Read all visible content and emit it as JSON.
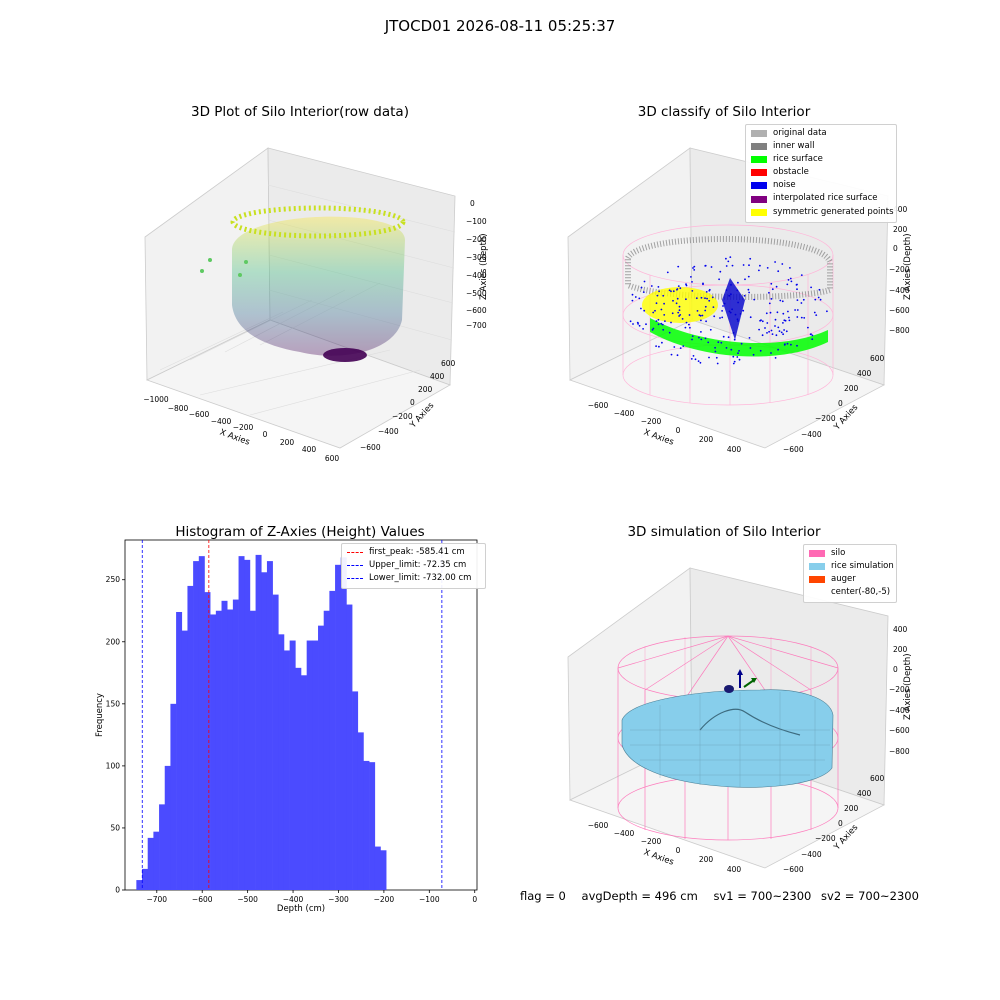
{
  "suptitle": "JTOCD01 2026-08-11 05:25:37",
  "panels": {
    "raw": {
      "title": "3D Plot of Silo Interior(row data)",
      "xlabel": "X Axies",
      "ylabel": "Y Axies",
      "zlabel": "Z Axies (Depth)",
      "xticks": [
        "−1000",
        "−800",
        "−600",
        "−400",
        "−200",
        "0",
        "200",
        "400",
        "600"
      ],
      "yticks": [
        "−600",
        "−400",
        "−200",
        "0",
        "200",
        "400",
        "600"
      ],
      "zticks": [
        "0",
        "−100",
        "−200",
        "−300",
        "−400",
        "−500",
        "−600",
        "−700"
      ],
      "colormap": "viridis"
    },
    "classify": {
      "title": "3D classify of Silo Interior",
      "xlabel": "X Axies",
      "ylabel": "Y Axies",
      "zlabel": "Z Axies (Depth)",
      "xticks": [
        "−600",
        "−400",
        "−200",
        "0",
        "200",
        "400"
      ],
      "yticks": [
        "−600",
        "−400",
        "−200",
        "0",
        "200",
        "400",
        "600"
      ],
      "zticks": [
        "400",
        "200",
        "0",
        "−200",
        "−400",
        "−600",
        "−800"
      ],
      "legend": [
        {
          "label": "original data",
          "color": "#b0b0b0"
        },
        {
          "label": "inner wall",
          "color": "#808080"
        },
        {
          "label": "rice surface",
          "color": "#00ff00"
        },
        {
          "label": "obstacle",
          "color": "#ff0000"
        },
        {
          "label": "noise",
          "color": "#0000ee"
        },
        {
          "label": "interpolated rice surface",
          "color": "#800080"
        },
        {
          "label": "symmetric generated points",
          "color": "#ffff00"
        }
      ]
    },
    "histogram": {
      "title": "Histogram of Z-Axies (Height) Values",
      "xlabel": "Depth (cm)",
      "ylabel": "Frequency",
      "legend": [
        {
          "label": "first_peak: -585.41 cm",
          "color": "#ff0000"
        },
        {
          "label": "Upper_limit: -72.35 cm",
          "color": "#0000ff"
        },
        {
          "label": "Lower_limit: -732.00 cm",
          "color": "#0000ff"
        }
      ]
    },
    "simulation": {
      "title": "3D simulation of Silo Interior",
      "xlabel": "X Axies",
      "ylabel": "Y Axies",
      "zlabel": "Z Axies (Depth)",
      "xticks": [
        "−600",
        "−400",
        "−200",
        "0",
        "200",
        "400"
      ],
      "yticks": [
        "−600",
        "−400",
        "−200",
        "0",
        "200",
        "400",
        "600"
      ],
      "zticks": [
        "400",
        "200",
        "0",
        "−200",
        "−400",
        "−600",
        "−800"
      ],
      "legend": [
        {
          "label": "silo",
          "color": "#ff69b4"
        },
        {
          "label": "rice simulation",
          "color": "#87ceeb"
        },
        {
          "label": "auger",
          "color": "#ff4500"
        },
        {
          "label": "center(-80,-5)",
          "color": ""
        }
      ]
    }
  },
  "chart_data": [
    {
      "type": "bar",
      "title": "Histogram of Z-Axies (Height) Values",
      "xlabel": "Depth (cm)",
      "ylabel": "Frequency",
      "bin_start": -745,
      "bin_width": 12.5,
      "values": [
        8,
        17,
        42,
        47,
        69,
        100,
        150,
        224,
        209,
        245,
        265,
        269,
        240,
        222,
        225,
        233,
        226,
        234,
        269,
        266,
        225,
        270,
        256,
        265,
        238,
        206,
        193,
        201,
        179,
        173,
        201,
        201,
        213,
        225,
        241,
        262,
        268,
        230,
        160,
        127,
        104,
        103,
        35,
        32
      ],
      "xlim": [
        -770,
        5
      ],
      "ylim": [
        0,
        282
      ],
      "xticks": [
        -700,
        -600,
        -500,
        -400,
        -300,
        -200,
        -100,
        0
      ],
      "yticks": [
        0,
        50,
        100,
        150,
        200,
        250
      ],
      "vlines": [
        {
          "label": "first_peak: -585.41 cm",
          "x": -585.41,
          "color": "#ff0000"
        },
        {
          "label": "Upper_limit: -72.35 cm",
          "x": -72.35,
          "color": "#0000ff"
        },
        {
          "label": "Lower_limit: -732.00 cm",
          "x": -732.0,
          "color": "#0000ff"
        }
      ],
      "bar_color": "#4b4bff",
      "legend_position": "upper right"
    }
  ],
  "footer": {
    "flag": "flag = 0",
    "avg_depth": "avgDepth = 496 cm",
    "sv1": "sv1 = 700~2300",
    "sv2": "sv2 = 700~2300"
  }
}
